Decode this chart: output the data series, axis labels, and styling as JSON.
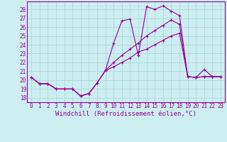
{
  "xlabel": "Windchill (Refroidissement éolien,°C)",
  "background_color": "#cceef0",
  "grid_color": "#aad4d8",
  "line_color": "#990099",
  "x_ticks": [
    0,
    1,
    2,
    3,
    4,
    5,
    6,
    7,
    8,
    9,
    10,
    11,
    12,
    13,
    14,
    15,
    16,
    17,
    18,
    19,
    20,
    21,
    22,
    23
  ],
  "y_ticks": [
    18,
    19,
    20,
    21,
    22,
    23,
    24,
    25,
    26,
    27,
    28
  ],
  "ylim": [
    17.5,
    28.9
  ],
  "xlim": [
    -0.5,
    23.5
  ],
  "line1_x": [
    0,
    1,
    2,
    3,
    4,
    5,
    6,
    7,
    8,
    9,
    10,
    11,
    12,
    13,
    14,
    15,
    16,
    17,
    18,
    19,
    20,
    21,
    22,
    23
  ],
  "line1_y": [
    20.3,
    19.6,
    19.6,
    19.0,
    19.0,
    19.0,
    18.2,
    18.5,
    19.7,
    21.1,
    24.2,
    26.7,
    26.9,
    22.8,
    28.3,
    28.0,
    28.4,
    27.8,
    27.3,
    20.4,
    20.3,
    21.2,
    20.4,
    20.4
  ],
  "line2_x": [
    0,
    1,
    2,
    3,
    4,
    5,
    6,
    7,
    8,
    9,
    10,
    11,
    12,
    13,
    14,
    15,
    16,
    17,
    18,
    19,
    20,
    21,
    22,
    23
  ],
  "line2_y": [
    20.3,
    19.6,
    19.6,
    19.0,
    19.0,
    19.0,
    18.2,
    18.5,
    19.7,
    21.1,
    22.0,
    22.8,
    23.5,
    24.2,
    25.0,
    25.6,
    26.2,
    26.8,
    26.3,
    20.4,
    20.3,
    20.4,
    20.4,
    20.4
  ],
  "line3_x": [
    0,
    1,
    2,
    3,
    4,
    5,
    6,
    7,
    8,
    9,
    10,
    11,
    12,
    13,
    14,
    15,
    16,
    17,
    18,
    19,
    20,
    21,
    22,
    23
  ],
  "line3_y": [
    20.3,
    19.6,
    19.6,
    19.0,
    19.0,
    19.0,
    18.2,
    18.5,
    19.7,
    21.1,
    21.5,
    22.0,
    22.5,
    23.2,
    23.5,
    24.0,
    24.5,
    25.0,
    25.3,
    20.4,
    20.3,
    20.4,
    20.4,
    20.4
  ],
  "tick_fontsize": 5.5,
  "xlabel_fontsize": 6.5
}
